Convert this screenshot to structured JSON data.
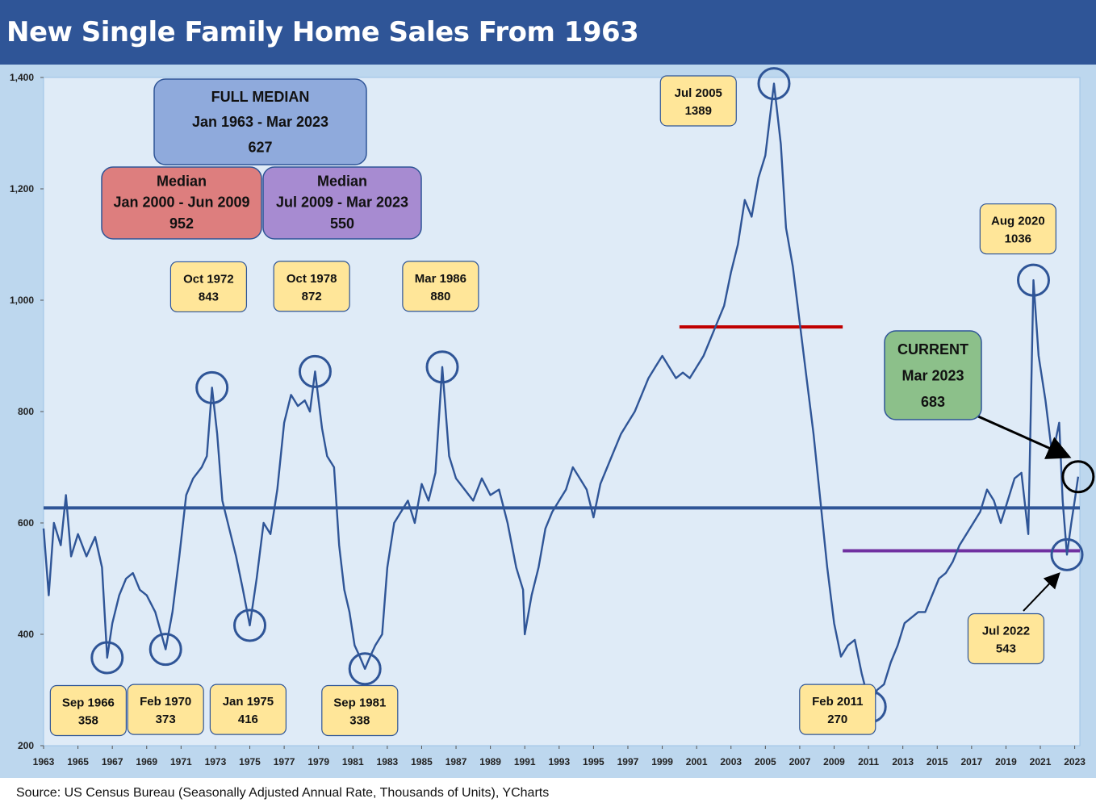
{
  "header": {
    "title": "New Single Family Home Sales From 1963"
  },
  "footer": {
    "source": "Source: US Census Bureau (Seasonally Adjusted Annual Rate, Thousands of Units), YCharts"
  },
  "chart_data": {
    "type": "line",
    "title": "New Single Family Home Sales From 1963",
    "xlabel": "",
    "ylabel": "",
    "xlim": [
      1963,
      2023.3
    ],
    "ylim": [
      200,
      1400
    ],
    "yticks": [
      200,
      400,
      600,
      800,
      1000,
      1200,
      1400
    ],
    "ytick_labels": [
      "200",
      "400",
      "600",
      "800",
      "1,000",
      "1,200",
      "1,400"
    ],
    "xticks": [
      1963,
      1965,
      1967,
      1969,
      1971,
      1973,
      1975,
      1977,
      1979,
      1981,
      1983,
      1985,
      1987,
      1989,
      1991,
      1993,
      1995,
      1997,
      1999,
      2001,
      2003,
      2005,
      2007,
      2009,
      2011,
      2013,
      2015,
      2017,
      2019,
      2021,
      2023
    ],
    "grid": false,
    "legend": "none",
    "series": [
      {
        "color": "#2f5597",
        "points": [
          [
            1963.0,
            590
          ],
          [
            1963.3,
            470
          ],
          [
            1963.6,
            600
          ],
          [
            1964.0,
            560
          ],
          [
            1964.3,
            650
          ],
          [
            1964.6,
            540
          ],
          [
            1965.0,
            580
          ],
          [
            1965.5,
            540
          ],
          [
            1966.0,
            575
          ],
          [
            1966.4,
            520
          ],
          [
            1966.7,
            358
          ],
          [
            1967.0,
            420
          ],
          [
            1967.4,
            470
          ],
          [
            1967.8,
            500
          ],
          [
            1968.2,
            510
          ],
          [
            1968.6,
            480
          ],
          [
            1969.0,
            470
          ],
          [
            1969.5,
            440
          ],
          [
            1970.1,
            373
          ],
          [
            1970.5,
            440
          ],
          [
            1970.9,
            540
          ],
          [
            1971.3,
            650
          ],
          [
            1971.7,
            680
          ],
          [
            1972.2,
            700
          ],
          [
            1972.5,
            720
          ],
          [
            1972.8,
            843
          ],
          [
            1973.1,
            760
          ],
          [
            1973.4,
            640
          ],
          [
            1973.8,
            590
          ],
          [
            1974.2,
            540
          ],
          [
            1974.6,
            480
          ],
          [
            1975.0,
            416
          ],
          [
            1975.4,
            500
          ],
          [
            1975.8,
            600
          ],
          [
            1976.2,
            580
          ],
          [
            1976.6,
            660
          ],
          [
            1977.0,
            780
          ],
          [
            1977.4,
            830
          ],
          [
            1977.8,
            810
          ],
          [
            1978.2,
            820
          ],
          [
            1978.5,
            800
          ],
          [
            1978.8,
            872
          ],
          [
            1979.2,
            770
          ],
          [
            1979.5,
            720
          ],
          [
            1979.9,
            700
          ],
          [
            1980.2,
            560
          ],
          [
            1980.5,
            480
          ],
          [
            1980.8,
            440
          ],
          [
            1981.1,
            380
          ],
          [
            1981.4,
            360
          ],
          [
            1981.7,
            338
          ],
          [
            1982.0,
            360
          ],
          [
            1982.3,
            380
          ],
          [
            1982.7,
            400
          ],
          [
            1983.0,
            520
          ],
          [
            1983.4,
            600
          ],
          [
            1983.8,
            620
          ],
          [
            1984.2,
            640
          ],
          [
            1984.6,
            600
          ],
          [
            1985.0,
            670
          ],
          [
            1985.4,
            640
          ],
          [
            1985.8,
            690
          ],
          [
            1986.2,
            880
          ],
          [
            1986.6,
            720
          ],
          [
            1987.0,
            680
          ],
          [
            1987.5,
            660
          ],
          [
            1988.0,
            640
          ],
          [
            1988.5,
            680
          ],
          [
            1989.0,
            650
          ],
          [
            1989.5,
            660
          ],
          [
            1990.0,
            600
          ],
          [
            1990.5,
            520
          ],
          [
            1990.9,
            480
          ],
          [
            1991.0,
            400
          ],
          [
            1991.4,
            470
          ],
          [
            1991.8,
            520
          ],
          [
            1992.2,
            590
          ],
          [
            1992.6,
            620
          ],
          [
            1993.0,
            640
          ],
          [
            1993.4,
            660
          ],
          [
            1993.8,
            700
          ],
          [
            1994.2,
            680
          ],
          [
            1994.6,
            660
          ],
          [
            1995.0,
            610
          ],
          [
            1995.4,
            670
          ],
          [
            1995.8,
            700
          ],
          [
            1996.2,
            730
          ],
          [
            1996.6,
            760
          ],
          [
            1997.0,
            780
          ],
          [
            1997.4,
            800
          ],
          [
            1997.8,
            830
          ],
          [
            1998.2,
            860
          ],
          [
            1998.6,
            880
          ],
          [
            1999.0,
            900
          ],
          [
            1999.4,
            880
          ],
          [
            1999.8,
            860
          ],
          [
            2000.2,
            870
          ],
          [
            2000.6,
            860
          ],
          [
            2001.0,
            880
          ],
          [
            2001.4,
            900
          ],
          [
            2001.8,
            930
          ],
          [
            2002.2,
            960
          ],
          [
            2002.6,
            990
          ],
          [
            2003.0,
            1050
          ],
          [
            2003.4,
            1100
          ],
          [
            2003.8,
            1180
          ],
          [
            2004.2,
            1150
          ],
          [
            2004.6,
            1220
          ],
          [
            2005.0,
            1260
          ],
          [
            2005.5,
            1389
          ],
          [
            2005.9,
            1280
          ],
          [
            2006.2,
            1130
          ],
          [
            2006.6,
            1060
          ],
          [
            2007.0,
            960
          ],
          [
            2007.4,
            860
          ],
          [
            2007.8,
            760
          ],
          [
            2008.2,
            640
          ],
          [
            2008.6,
            520
          ],
          [
            2009.0,
            420
          ],
          [
            2009.4,
            360
          ],
          [
            2009.8,
            380
          ],
          [
            2010.2,
            390
          ],
          [
            2010.6,
            330
          ],
          [
            2011.1,
            270
          ],
          [
            2011.5,
            300
          ],
          [
            2011.9,
            310
          ],
          [
            2012.3,
            350
          ],
          [
            2012.7,
            380
          ],
          [
            2013.1,
            420
          ],
          [
            2013.5,
            430
          ],
          [
            2013.9,
            440
          ],
          [
            2014.3,
            440
          ],
          [
            2014.7,
            470
          ],
          [
            2015.1,
            500
          ],
          [
            2015.5,
            510
          ],
          [
            2015.9,
            530
          ],
          [
            2016.3,
            560
          ],
          [
            2016.7,
            580
          ],
          [
            2017.1,
            600
          ],
          [
            2017.5,
            620
          ],
          [
            2017.9,
            660
          ],
          [
            2018.3,
            640
          ],
          [
            2018.7,
            600
          ],
          [
            2019.1,
            640
          ],
          [
            2019.5,
            680
          ],
          [
            2019.9,
            690
          ],
          [
            2020.3,
            580
          ],
          [
            2020.6,
            1036
          ],
          [
            2020.9,
            900
          ],
          [
            2021.3,
            820
          ],
          [
            2021.7,
            720
          ],
          [
            2022.1,
            780
          ],
          [
            2022.3,
            640
          ],
          [
            2022.55,
            543
          ],
          [
            2022.8,
            600
          ],
          [
            2023.0,
            640
          ],
          [
            2023.2,
            683
          ]
        ]
      }
    ],
    "reference_lines": [
      {
        "value": 627,
        "x_start": 1963,
        "x_end": 2023.3,
        "color": "#2f5597"
      },
      {
        "value": 952,
        "x_start": 2000.0,
        "x_end": 2009.5,
        "color": "#c00000"
      },
      {
        "value": 550,
        "x_start": 2009.5,
        "x_end": 2023.3,
        "color": "#7030a0"
      }
    ],
    "circled_points": [
      [
        1966.7,
        358
      ],
      [
        1970.1,
        373
      ],
      [
        1972.8,
        843
      ],
      [
        1975.0,
        416
      ],
      [
        1978.8,
        872
      ],
      [
        1981.7,
        338
      ],
      [
        1986.2,
        880
      ],
      [
        2005.5,
        1389
      ],
      [
        2011.1,
        270
      ],
      [
        2020.6,
        1036
      ],
      [
        2022.55,
        543
      ],
      [
        2023.2,
        683
      ]
    ],
    "annotations": [
      {
        "label": "Sep 1966",
        "value": "358",
        "x_center": 1965.6,
        "y_center": 263,
        "color": "#ffe699"
      },
      {
        "label": "Feb 1970",
        "value": "373",
        "x_center": 1970.1,
        "y_center": 265,
        "color": "#ffe699"
      },
      {
        "label": "Jan 1975",
        "value": "416",
        "x_center": 1974.9,
        "y_center": 265,
        "color": "#ffe699"
      },
      {
        "label": "Oct 1972",
        "value": "843",
        "x_center": 1972.6,
        "y_center": 1024,
        "color": "#ffe699"
      },
      {
        "label": "Oct 1978",
        "value": "872",
        "x_center": 1978.6,
        "y_center": 1025,
        "color": "#ffe699"
      },
      {
        "label": "Sep 1981",
        "value": "338",
        "x_center": 1981.4,
        "y_center": 263,
        "color": "#ffe699"
      },
      {
        "label": "Mar 1986",
        "value": "880",
        "x_center": 1986.1,
        "y_center": 1025,
        "color": "#ffe699"
      },
      {
        "label": "Jul 2005",
        "value": "1389",
        "x_center": 2001.1,
        "y_center": 1358,
        "color": "#ffe699"
      },
      {
        "label": "Feb 2011",
        "value": "270",
        "x_center": 2009.2,
        "y_center": 265,
        "color": "#ffe699"
      },
      {
        "label": "Aug 2020",
        "value": "1036",
        "x_center": 2019.7,
        "y_center": 1128,
        "color": "#ffe699"
      },
      {
        "label": "Jul 2022",
        "value": "543",
        "x_center": 2019.0,
        "y_center": 392,
        "color": "#ffe699"
      }
    ],
    "boxes": [
      {
        "lines": [
          "FULL MEDIAN",
          "Jan 1963 - Mar 2023",
          "627"
        ],
        "color": "#8faadc"
      },
      {
        "lines": [
          "Median",
          "Jan 2000 - Jun 2009",
          "952"
        ],
        "color": "#dd7e7e"
      },
      {
        "lines": [
          "Median",
          "Jul 2009 - Mar 2023",
          "550"
        ],
        "color": "#a78bd1"
      },
      {
        "lines": [
          "CURRENT",
          "Mar 2023",
          "683"
        ],
        "color": "#8cc08a"
      }
    ]
  }
}
